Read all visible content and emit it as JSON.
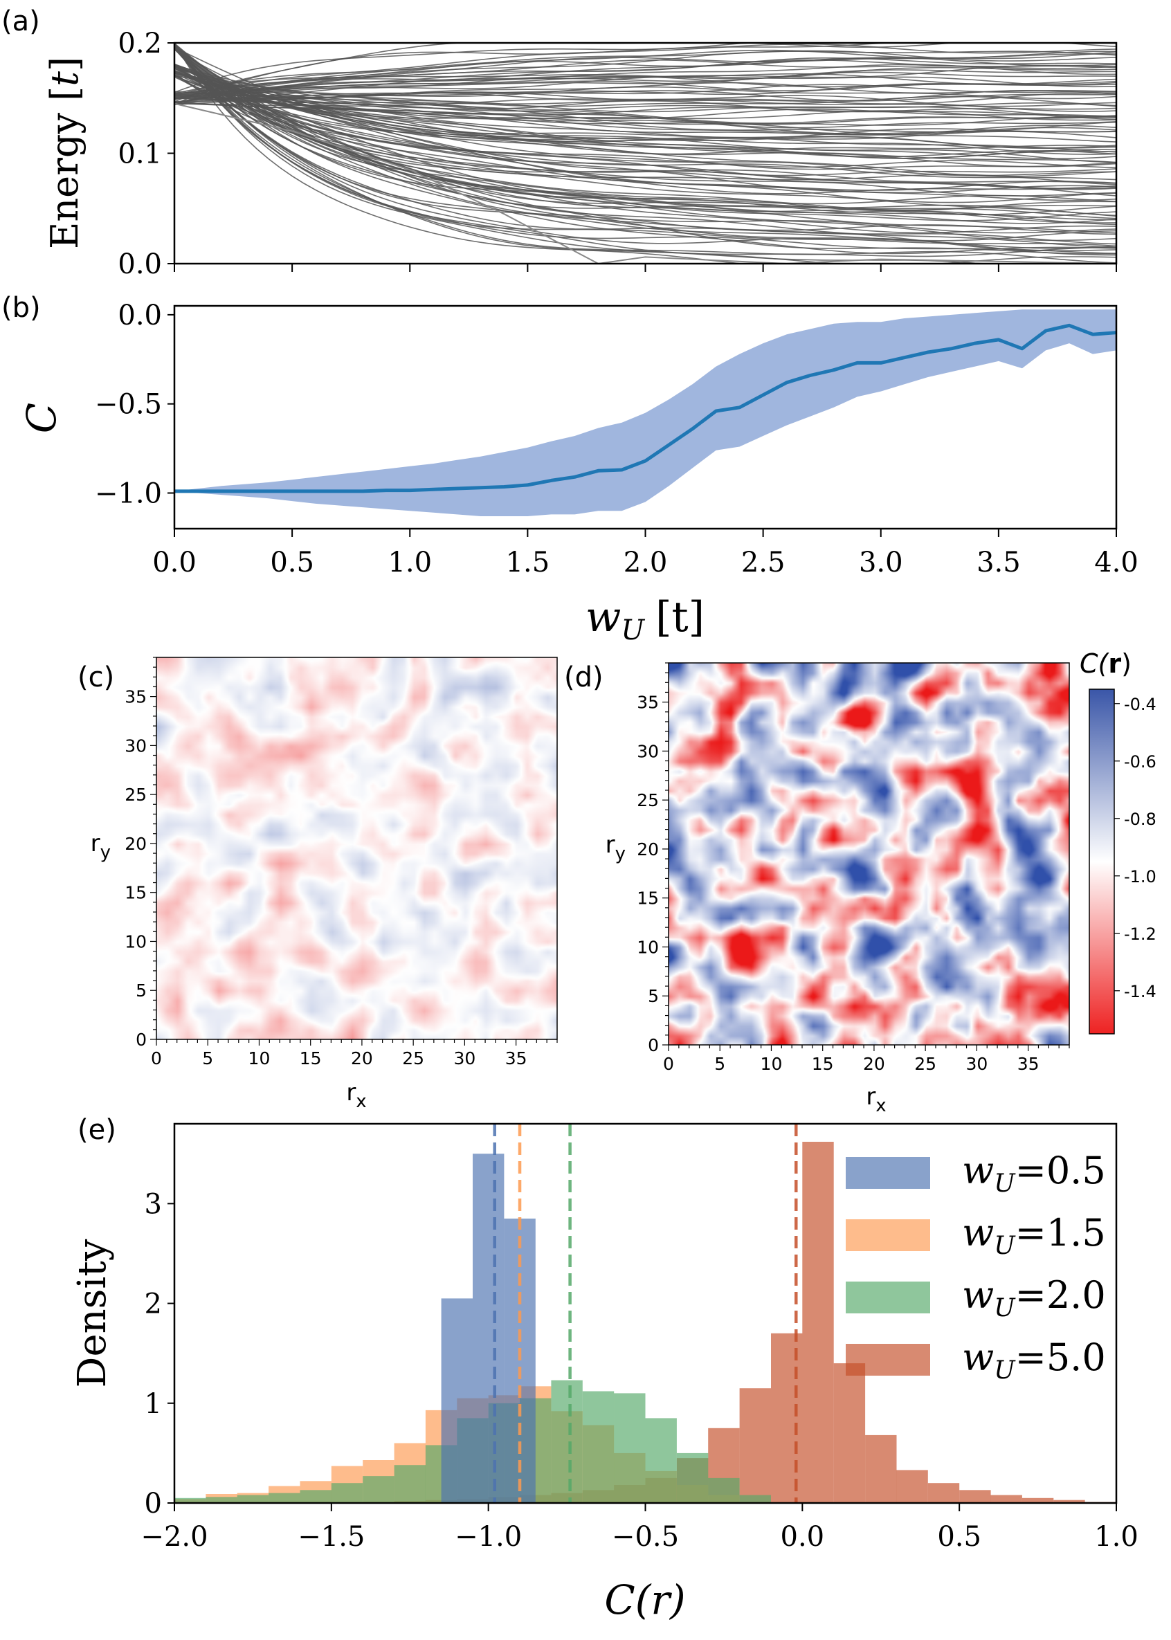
{
  "colors": {
    "blue": "#4c72b0",
    "orange": "#fd9a50",
    "green": "#55a868",
    "red": "#c44e28",
    "line_b": "#1f77b4",
    "band_b": "#5b82c7",
    "gray": "#555555"
  },
  "chart_data": [
    {
      "id": "a",
      "panel_label": "(a)",
      "type": "line",
      "title": "",
      "xlabel": "",
      "ylabel": "Energy [t]",
      "ylabel_main": "Energy [",
      "ylabel_unit": "t",
      "ylabel_close": "]",
      "xlim": [
        0,
        4
      ],
      "ylim": [
        0,
        0.2
      ],
      "yticks": [
        "0.0",
        "0.1",
        "0.2"
      ],
      "ytick_values": [
        0,
        0.1,
        0.2
      ],
      "xticks_values": [
        0,
        0.5,
        1.0,
        1.5,
        2.0,
        2.5,
        3.0,
        3.5,
        4.0
      ],
      "n_levels": 110,
      "start_clusters": [
        0.2,
        0.175,
        0.15
      ],
      "lowest_level": {
        "x": [
          0.0,
          0.5,
          1.0,
          1.4,
          1.8,
          2.0,
          2.6,
          3.0,
          4.0
        ],
        "y": [
          0.145,
          0.12,
          0.085,
          0.045,
          0.0,
          0.006,
          0.0,
          0.004,
          0.0
        ]
      }
    },
    {
      "id": "b",
      "panel_label": "(b)",
      "type": "line",
      "xlabel": "w_U [t]",
      "xlabel_w": "w",
      "xlabel_sub": "U",
      "xlabel_unit": "[t]",
      "ylabel": "C",
      "xlim": [
        0,
        4
      ],
      "ylim": [
        -1.2,
        0.05
      ],
      "xticks": [
        "0.0",
        "0.5",
        "1.0",
        "1.5",
        "2.0",
        "2.5",
        "3.0",
        "3.5",
        "4.0"
      ],
      "xtick_values": [
        0,
        0.5,
        1.0,
        1.5,
        2.0,
        2.5,
        3.0,
        3.5,
        4.0
      ],
      "yticks": [
        "0.0",
        "−0.5",
        "−1.0"
      ],
      "ytick_values": [
        0,
        -0.5,
        -1.0
      ],
      "series": [
        {
          "name": "mean C",
          "x": [
            0.0,
            0.1,
            0.2,
            0.3,
            0.4,
            0.5,
            0.6,
            0.7,
            0.8,
            0.9,
            1.0,
            1.1,
            1.2,
            1.3,
            1.4,
            1.5,
            1.6,
            1.7,
            1.8,
            1.9,
            2.0,
            2.1,
            2.2,
            2.3,
            2.4,
            2.5,
            2.6,
            2.7,
            2.8,
            2.9,
            3.0,
            3.1,
            3.2,
            3.3,
            3.4,
            3.5,
            3.6,
            3.7,
            3.8,
            3.9,
            4.0
          ],
          "mean": [
            -0.99,
            -0.99,
            -0.99,
            -0.99,
            -0.99,
            -0.99,
            -0.99,
            -0.99,
            -0.99,
            -0.985,
            -0.985,
            -0.98,
            -0.975,
            -0.97,
            -0.965,
            -0.955,
            -0.93,
            -0.91,
            -0.875,
            -0.87,
            -0.82,
            -0.73,
            -0.64,
            -0.54,
            -0.52,
            -0.45,
            -0.38,
            -0.34,
            -0.31,
            -0.27,
            -0.27,
            -0.24,
            -0.21,
            -0.19,
            -0.16,
            -0.14,
            -0.19,
            -0.09,
            -0.06,
            -0.11,
            -0.1
          ],
          "upper": [
            -0.99,
            -0.975,
            -0.96,
            -0.95,
            -0.94,
            -0.925,
            -0.91,
            -0.895,
            -0.88,
            -0.865,
            -0.85,
            -0.835,
            -0.815,
            -0.795,
            -0.77,
            -0.745,
            -0.71,
            -0.68,
            -0.635,
            -0.605,
            -0.55,
            -0.475,
            -0.39,
            -0.29,
            -0.22,
            -0.16,
            -0.11,
            -0.08,
            -0.05,
            -0.04,
            -0.04,
            -0.02,
            -0.01,
            0.0,
            0.01,
            0.02,
            0.03,
            0.03,
            0.03,
            0.03,
            0.03
          ],
          "lower": [
            -0.99,
            -1.0,
            -1.01,
            -1.02,
            -1.03,
            -1.045,
            -1.06,
            -1.07,
            -1.08,
            -1.09,
            -1.1,
            -1.11,
            -1.12,
            -1.13,
            -1.13,
            -1.13,
            -1.12,
            -1.12,
            -1.1,
            -1.1,
            -1.05,
            -0.96,
            -0.86,
            -0.76,
            -0.74,
            -0.68,
            -0.62,
            -0.57,
            -0.52,
            -0.46,
            -0.43,
            -0.39,
            -0.35,
            -0.32,
            -0.29,
            -0.26,
            -0.3,
            -0.2,
            -0.16,
            -0.22,
            -0.2
          ]
        }
      ]
    },
    {
      "id": "c",
      "panel_label": "(c)",
      "type": "heatmap",
      "xlabel": "r",
      "xlabel_sub": "x",
      "ylabel": "r",
      "ylabel_sub": "y",
      "grid_size": 40,
      "value_range": [
        -1.55,
        -0.35
      ],
      "mean": -1.0,
      "spread": 0.17,
      "xticks": [
        "0",
        "5",
        "10",
        "15",
        "20",
        "25",
        "30",
        "35"
      ],
      "yticks": [
        "0",
        "5",
        "10",
        "15",
        "20",
        "25",
        "30",
        "35"
      ]
    },
    {
      "id": "d",
      "panel_label": "(d)",
      "type": "heatmap",
      "xlabel": "r",
      "xlabel_sub": "x",
      "ylabel": "r",
      "ylabel_sub": "y",
      "grid_size": 40,
      "value_range": [
        -1.55,
        -0.35
      ],
      "mean": -0.95,
      "spread": 0.6,
      "xticks": [
        "0",
        "5",
        "10",
        "15",
        "20",
        "25",
        "30",
        "35"
      ],
      "yticks": [
        "0",
        "5",
        "10",
        "15",
        "20",
        "25",
        "30",
        "35"
      ],
      "colorbar": {
        "label": "C(r)",
        "label_main": "C(",
        "label_bold": "r",
        "label_close": ")",
        "ticks": [
          "-0.4",
          "-0.6",
          "-0.8",
          "-1.0",
          "-1.2",
          "-1.4"
        ],
        "tick_values": [
          -0.4,
          -0.6,
          -0.8,
          -1.0,
          -1.2,
          -1.4
        ]
      }
    },
    {
      "id": "e",
      "panel_label": "(e)",
      "type": "bar",
      "title": "",
      "xlabel": "C(r)",
      "ylabel": "Density",
      "xlim": [
        -2.0,
        1.0
      ],
      "ylim": [
        0,
        3.8
      ],
      "xticks": [
        "−2.0",
        "−1.5",
        "−1.0",
        "−0.5",
        "0.0",
        "0.5",
        "1.0"
      ],
      "xtick_values": [
        -2.0,
        -1.5,
        -1.0,
        -0.5,
        0.0,
        0.5,
        1.0
      ],
      "yticks": [
        "0",
        "1",
        "2",
        "3"
      ],
      "ytick_values": [
        0,
        1,
        2,
        3
      ],
      "legend_position": "upper-right",
      "series": [
        {
          "name": "w_U=0.5",
          "legend_text": "=0.5",
          "color": "#4c72b0",
          "bin_edges": [
            -1.15,
            -1.05,
            -0.95,
            -0.85
          ],
          "values": [
            2.05,
            3.5,
            2.85
          ],
          "mean_line": -0.98
        },
        {
          "name": "w_U=1.5",
          "legend_text": "=1.5",
          "color": "#fd9a50",
          "bin_edges": [
            -2.0,
            -1.9,
            -1.8,
            -1.7,
            -1.6,
            -1.5,
            -1.4,
            -1.3,
            -1.2,
            -1.1,
            -1.0,
            -0.9,
            -0.8,
            -0.7,
            -0.6,
            -0.5,
            -0.4,
            -0.3,
            -0.2
          ],
          "values": [
            0.04,
            0.09,
            0.1,
            0.17,
            0.22,
            0.37,
            0.43,
            0.6,
            0.93,
            1.05,
            1.08,
            1.17,
            0.92,
            0.78,
            0.5,
            0.32,
            0.18,
            0.08
          ],
          "mean_line": -0.9
        },
        {
          "name": "w_U=2.0",
          "legend_text": "=2.0",
          "color": "#55a868",
          "bin_edges": [
            -2.0,
            -1.9,
            -1.8,
            -1.7,
            -1.6,
            -1.5,
            -1.4,
            -1.3,
            -1.2,
            -1.1,
            -1.0,
            -0.9,
            -0.8,
            -0.7,
            -0.6,
            -0.5,
            -0.4,
            -0.3,
            -0.2,
            -0.1
          ],
          "values": [
            0.05,
            0.06,
            0.08,
            0.1,
            0.13,
            0.2,
            0.27,
            0.38,
            0.58,
            0.85,
            1.0,
            1.05,
            1.23,
            1.12,
            1.1,
            0.85,
            0.5,
            0.25,
            0.08
          ],
          "mean_line": -0.74
        },
        {
          "name": "w_U=5.0",
          "legend_text": "=5.0",
          "color": "#c44e28",
          "bin_edges": [
            -1.4,
            -1.3,
            -1.2,
            -1.1,
            -1.0,
            -0.9,
            -0.8,
            -0.7,
            -0.6,
            -0.5,
            -0.4,
            -0.3,
            -0.2,
            -0.1,
            0.0,
            0.1,
            0.2,
            0.3,
            0.4,
            0.5,
            0.6,
            0.7,
            0.8,
            0.9,
            1.0
          ],
          "values": [
            0.01,
            0.02,
            0.03,
            0.04,
            0.06,
            0.08,
            0.1,
            0.13,
            0.18,
            0.25,
            0.45,
            0.75,
            1.15,
            1.7,
            3.62,
            1.4,
            0.68,
            0.33,
            0.2,
            0.13,
            0.08,
            0.05,
            0.03,
            0.01
          ],
          "mean_line": -0.02
        }
      ]
    }
  ]
}
